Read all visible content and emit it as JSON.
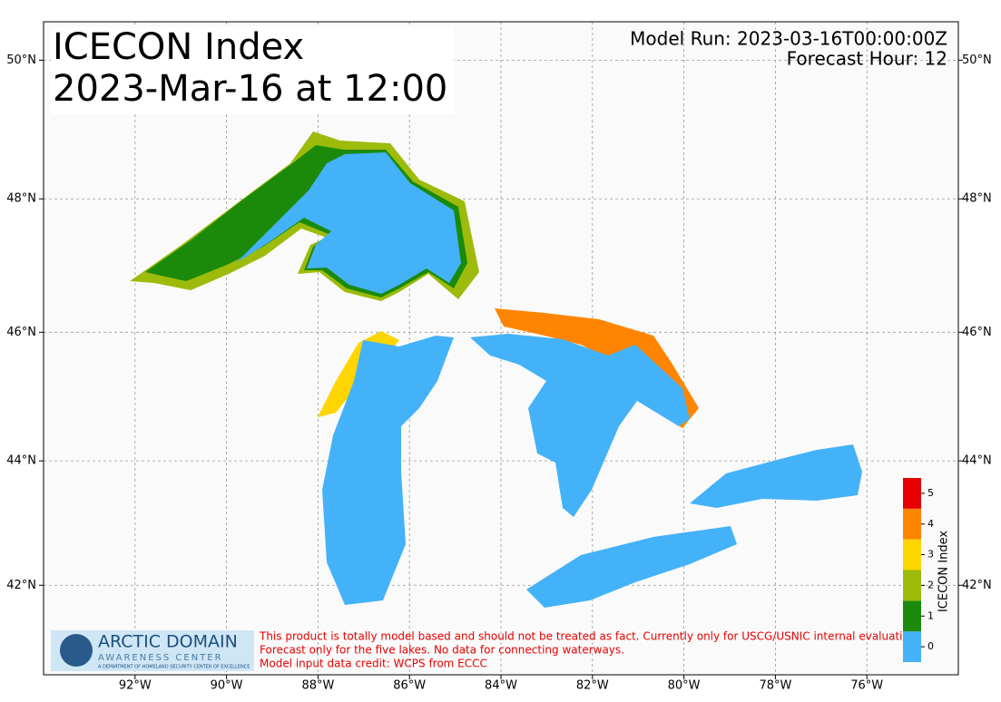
{
  "chart_data": {
    "type": "map",
    "title": "ICECON Index",
    "subtitle": "2023-Mar-16 at 12:00",
    "model_run": "Model Run: 2023-03-16T00:00:00Z",
    "forecast_hour": "Forecast Hour: 12",
    "xlim": [
      -94.0,
      -74.0
    ],
    "ylim": [
      40.52,
      50.54
    ],
    "projection": "mercator",
    "grid": true,
    "xticks": [
      {
        "value": -92,
        "label": "92°W"
      },
      {
        "value": -90,
        "label": "90°W"
      },
      {
        "value": -88,
        "label": "88°W"
      },
      {
        "value": -86,
        "label": "86°W"
      },
      {
        "value": -84,
        "label": "84°W"
      },
      {
        "value": -82,
        "label": "82°W"
      },
      {
        "value": -80,
        "label": "80°W"
      },
      {
        "value": -78,
        "label": "78°W"
      },
      {
        "value": -76,
        "label": "76°W"
      }
    ],
    "yticks": [
      {
        "value": 42,
        "label": "42°N"
      },
      {
        "value": 44,
        "label": "44°N"
      },
      {
        "value": 46,
        "label": "46°N"
      },
      {
        "value": 48,
        "label": "48°N"
      },
      {
        "value": 50,
        "label": "50°N"
      }
    ],
    "colorbar": {
      "label": "ICECON Index",
      "ticks": [
        0,
        1,
        2,
        3,
        4,
        5
      ],
      "colors": [
        "#44b2f8",
        "#1b8a0b",
        "#9dbb0b",
        "#ffd500",
        "#ff8500",
        "#e60000"
      ]
    },
    "logo": {
      "name": "ARCTIC DOMAIN",
      "line2": "AWARENESS CENTER",
      "line3": "A DEPARTMENT OF HOMELAND SECURITY CENTER OF EXCELLENCE"
    },
    "disclaimer": [
      "This product is totally model based and should not be treated as fact. Currently only for USCG/USNIC internal evaluation.",
      "Forecast only for the five lakes. No data for connecting waterways.",
      "Model input data credit: WCPS from ECCC"
    ]
  }
}
